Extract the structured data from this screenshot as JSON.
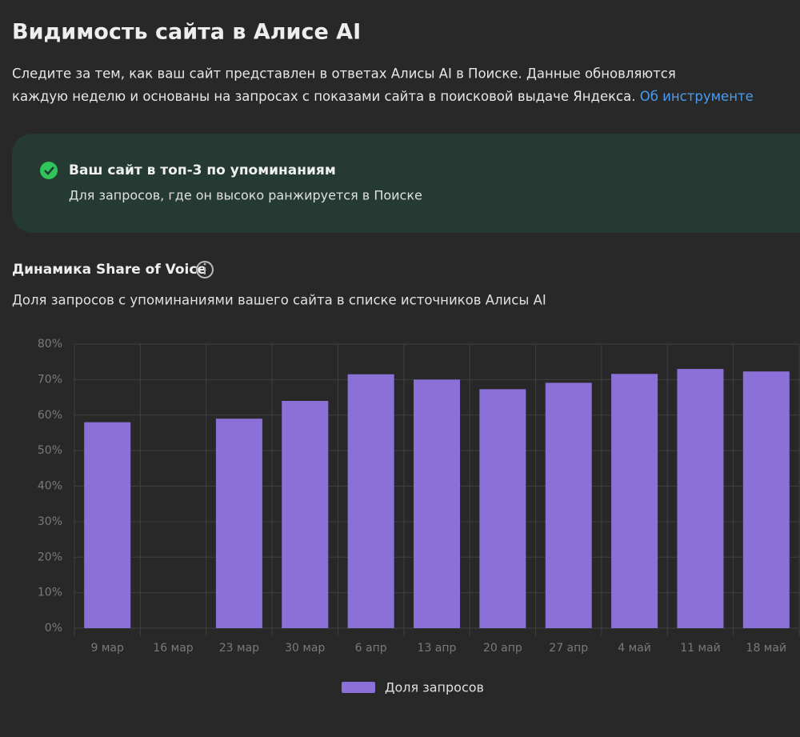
{
  "header": {
    "title": "Видимость сайта в Алисе AI",
    "lines": [
      "Следите за тем, как ваш сайт представлен в ответах Алисы AI в Поиске. Данные обновляются",
      "каждую неделю и основаны на запросах с показами сайта в поисковой выдаче Яндекса."
    ],
    "link": "Об инструменте"
  },
  "banner": {
    "title": "Ваш сайт в топ-3 по упоминаниям",
    "text": "Для запросов, где он высоко ранжируется в Поиске"
  },
  "chart_data": {
    "type": "bar",
    "title": "Динамика Share of Voice",
    "subtitle": "Доля запросов с упоминаниями вашего сайта в списке источников Алисы AI",
    "categories": [
      "9 мар",
      "16 мар",
      "23 мар",
      "30 мар",
      "6 апр",
      "13 апр",
      "20 апр",
      "27 апр",
      "4 май",
      "11 май",
      "18 май"
    ],
    "series": [
      {
        "name": "Доля запросов",
        "color": "#8b70d8",
        "values": [
          58,
          null,
          59,
          64,
          71.5,
          70,
          67.3,
          69.1,
          71.6,
          73,
          72.3
        ]
      }
    ],
    "ylim": [
      0,
      80
    ],
    "yticks": [
      {
        "value": 0,
        "label": "0%"
      },
      {
        "value": 10,
        "label": "10%"
      },
      {
        "value": 20,
        "label": "20%"
      },
      {
        "value": 30,
        "label": "30%"
      },
      {
        "value": 40,
        "label": "40%"
      },
      {
        "value": 50,
        "label": "50%"
      },
      {
        "value": 60,
        "label": "60%"
      },
      {
        "value": 70,
        "label": "70%"
      },
      {
        "value": 80,
        "label": "80%"
      }
    ],
    "grid": true,
    "legend": "bottom"
  }
}
